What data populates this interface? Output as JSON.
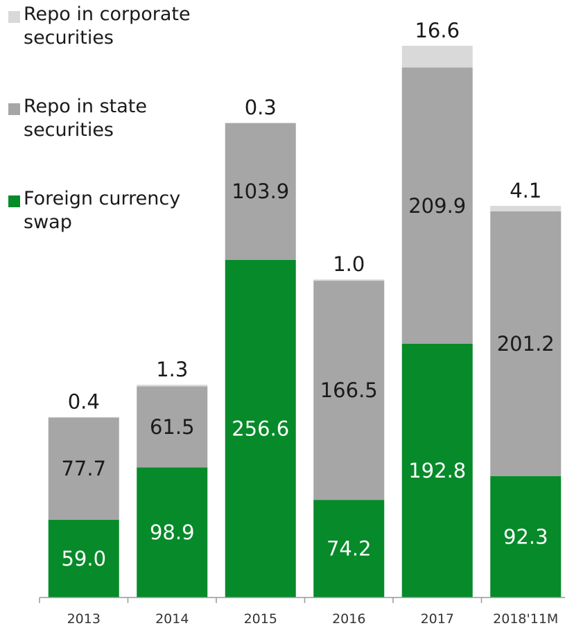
{
  "chart_data": {
    "type": "bar",
    "stacked": true,
    "categories": [
      "2013",
      "2014",
      "2015",
      "2016",
      "2017",
      "2018'11M"
    ],
    "series": [
      {
        "name": "Foreign currency swap",
        "values": [
          59.0,
          98.9,
          256.6,
          74.2,
          192.8,
          92.3
        ],
        "labels": [
          "59.0",
          "98.9",
          "256.6",
          "74.2",
          "192.8",
          "92.3"
        ],
        "color": "#078a2a"
      },
      {
        "name": "Repo in state securities",
        "values": [
          77.7,
          61.5,
          103.9,
          166.5,
          209.9,
          201.2
        ],
        "labels": [
          "77.7",
          "61.5",
          "103.9",
          "166.5",
          "209.9",
          "201.2"
        ],
        "color": "#a6a6a6"
      },
      {
        "name": "Repo in corporate securities",
        "values": [
          0.4,
          1.3,
          0.3,
          1.0,
          16.6,
          4.1
        ],
        "labels": [
          "0.4",
          "1.3",
          "0.3",
          "1.0",
          "16.6",
          "4.1"
        ],
        "color": "#d9d9d9"
      }
    ],
    "ylim": [
      0,
      419.3
    ],
    "grid": false,
    "legend_position": "top-left"
  },
  "legend": [
    {
      "name": "Repo in corporate securities",
      "color": "#d9d9d9"
    },
    {
      "name": "Repo in state securities",
      "color": "#a6a6a6"
    },
    {
      "name": "Foreign currency swap",
      "color": "#078a2a"
    }
  ]
}
